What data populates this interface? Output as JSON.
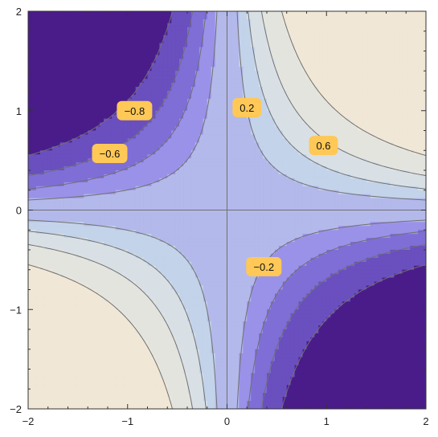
{
  "chart_data": {
    "type": "contour",
    "function": "tanh(x*y)",
    "xlim": [
      -2,
      2
    ],
    "ylim": [
      -2,
      2
    ],
    "xticks": [
      {
        "v": -2,
        "label": "−2"
      },
      {
        "v": -1,
        "label": "−1"
      },
      {
        "v": 0,
        "label": "0"
      },
      {
        "v": 1,
        "label": "1"
      },
      {
        "v": 2,
        "label": "2"
      }
    ],
    "yticks": [
      {
        "v": -2,
        "label": "−2"
      },
      {
        "v": -1,
        "label": "−1"
      },
      {
        "v": 0,
        "label": "0"
      },
      {
        "v": 1,
        "label": "1"
      },
      {
        "v": 2,
        "label": "2"
      }
    ],
    "levels": [
      -1,
      -0.8,
      -0.6,
      -0.4,
      -0.2,
      0,
      0.2,
      0.4,
      0.6,
      0.8,
      1
    ],
    "band_colors": [
      "#4a1c8a",
      "#6a4fbf",
      "#7e6ed6",
      "#9a92e8",
      "#b3b9ea",
      "#b3b9ea",
      "#c3d3ea",
      "#d8e0e6",
      "#e4e4df",
      "#f1e7d6"
    ],
    "contour_line_color": "#707070",
    "label_color": "#ffc857",
    "grid": false,
    "contour_labels": [
      {
        "text": "−0.8",
        "x": -0.93,
        "y": 1.0
      },
      {
        "text": "−0.6",
        "x": -1.18,
        "y": 0.57
      },
      {
        "text": "0.2",
        "x": 0.2,
        "y": 1.03
      },
      {
        "text": "0.6",
        "x": 0.97,
        "y": 0.65
      },
      {
        "text": "−0.2",
        "x": 0.37,
        "y": -0.57
      }
    ]
  }
}
